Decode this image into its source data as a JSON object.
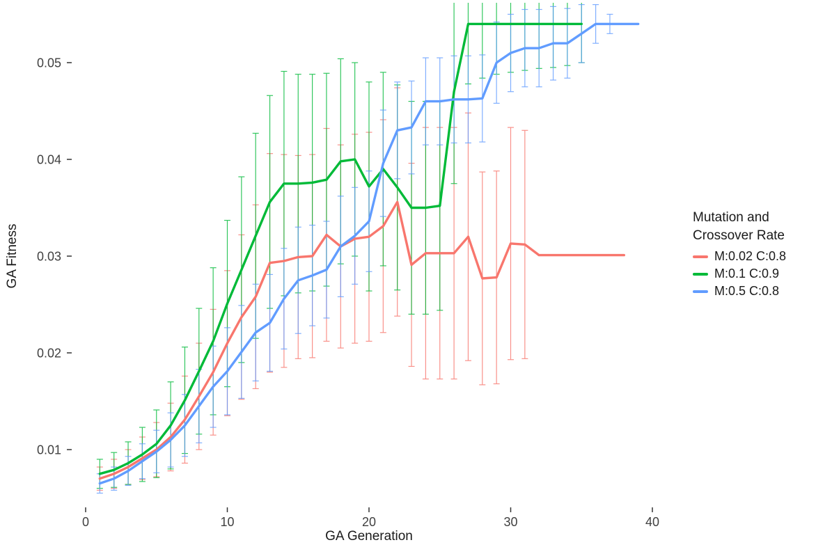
{
  "figure": {
    "background": "#ffffff",
    "legend": {
      "title_line1": "Mutation and",
      "title_line2": "Crossover Rate"
    }
  },
  "chart_data": {
    "type": "line",
    "title": "",
    "xlabel": "GA Generation",
    "ylabel": "GA Fitness",
    "xlim": [
      0,
      42
    ],
    "ylim": [
      0.004,
      0.058
    ],
    "grid": false,
    "legend_position": "right",
    "legend_title": "Mutation and Crossover Rate",
    "x_ticks": [
      0,
      10,
      20,
      30,
      40
    ],
    "x_tick_labels": [
      "0",
      "10",
      "20",
      "30",
      "40"
    ],
    "y_ticks": [
      0.01,
      0.02,
      0.03,
      0.04,
      0.05
    ],
    "y_tick_labels": [
      "0.01",
      "0.02",
      "0.03",
      "0.04",
      "0.05"
    ],
    "error_bars": true,
    "series": [
      {
        "name": "M:0.02 C:0.8",
        "color": "#F8766D",
        "x": [
          1,
          2,
          3,
          4,
          5,
          6,
          7,
          8,
          9,
          10,
          11,
          12,
          13,
          14,
          15,
          16,
          17,
          18,
          19,
          20,
          21,
          22,
          23,
          24,
          25,
          26,
          27,
          28,
          29,
          30,
          31,
          32,
          33,
          34,
          35,
          36,
          37,
          38
        ],
        "y": [
          0.007,
          0.0075,
          0.0082,
          0.0091,
          0.01,
          0.0113,
          0.0131,
          0.0155,
          0.018,
          0.021,
          0.0237,
          0.0258,
          0.0293,
          0.0295,
          0.0299,
          0.03,
          0.0322,
          0.031,
          0.0318,
          0.032,
          0.0331,
          0.0356,
          0.0291,
          0.0303,
          0.0303,
          0.0303,
          0.032,
          0.0277,
          0.0278,
          0.0313,
          0.0312,
          0.0301,
          0.0301,
          0.0301,
          0.0301,
          0.0301,
          0.0301,
          0.0301
        ],
        "err": [
          0.0012,
          0.0015,
          0.0018,
          0.0022,
          0.0028,
          0.0035,
          0.0045,
          0.0055,
          0.0065,
          0.0075,
          0.0085,
          0.0095,
          0.0113,
          0.011,
          0.0105,
          0.0105,
          0.011,
          0.0105,
          0.0108,
          0.0108,
          0.011,
          0.0118,
          0.0105,
          0.013,
          0.013,
          0.013,
          0.0128,
          0.011,
          0.011,
          0.012,
          0.0118,
          0,
          0,
          0,
          0,
          0,
          0,
          0
        ]
      },
      {
        "name": "M:0.1 C:0.9",
        "color": "#00BA38",
        "x": [
          1,
          2,
          3,
          4,
          5,
          6,
          7,
          8,
          9,
          10,
          11,
          12,
          13,
          14,
          15,
          16,
          17,
          18,
          19,
          20,
          21,
          22,
          23,
          24,
          25,
          26,
          27,
          28,
          29,
          30,
          31,
          32,
          33,
          34,
          35
        ],
        "y": [
          0.0075,
          0.0079,
          0.0086,
          0.0095,
          0.0106,
          0.0125,
          0.0151,
          0.0181,
          0.0212,
          0.0251,
          0.0286,
          0.0321,
          0.0356,
          0.0375,
          0.0375,
          0.0376,
          0.0379,
          0.0398,
          0.04,
          0.0372,
          0.039,
          0.0371,
          0.035,
          0.035,
          0.0352,
          0.047,
          0.054,
          0.054,
          0.054,
          0.054,
          0.054,
          0.054,
          0.054,
          0.054,
          0.054
        ],
        "err": [
          0.0015,
          0.0018,
          0.0022,
          0.0028,
          0.0035,
          0.0045,
          0.0055,
          0.0065,
          0.0076,
          0.0086,
          0.0096,
          0.0106,
          0.011,
          0.0116,
          0.0113,
          0.0112,
          0.011,
          0.0106,
          0.01,
          0.0108,
          0.01,
          0.0106,
          0.011,
          0.011,
          0.0108,
          0.0095,
          0.0062,
          0.0056,
          0.0052,
          0.005,
          0.0048,
          0.0046,
          0.0045,
          0.0043,
          0.004
        ]
      },
      {
        "name": "M:0.5 C:0.8",
        "color": "#619CFF",
        "x": [
          1,
          2,
          3,
          4,
          5,
          6,
          7,
          8,
          9,
          10,
          11,
          12,
          13,
          14,
          15,
          16,
          17,
          18,
          19,
          20,
          21,
          22,
          23,
          24,
          25,
          26,
          27,
          28,
          29,
          30,
          31,
          32,
          33,
          34,
          35,
          36,
          37,
          38,
          39
        ],
        "y": [
          0.0065,
          0.007,
          0.0078,
          0.0088,
          0.0098,
          0.011,
          0.0125,
          0.0145,
          0.0165,
          0.0181,
          0.0201,
          0.0221,
          0.0231,
          0.0256,
          0.0275,
          0.028,
          0.0286,
          0.031,
          0.0321,
          0.0336,
          0.0396,
          0.043,
          0.0433,
          0.046,
          0.046,
          0.0462,
          0.0462,
          0.0463,
          0.05,
          0.051,
          0.0515,
          0.0515,
          0.052,
          0.052,
          0.053,
          0.054,
          0.054,
          0.054,
          0.054
        ],
        "err": [
          0.001,
          0.0012,
          0.0015,
          0.0018,
          0.0022,
          0.0028,
          0.0032,
          0.0038,
          0.0042,
          0.0045,
          0.0048,
          0.005,
          0.005,
          0.0052,
          0.0055,
          0.0052,
          0.005,
          0.0052,
          0.005,
          0.0052,
          0.0055,
          0.005,
          0.0048,
          0.0045,
          0.0045,
          0.0045,
          0.0045,
          0.0045,
          0.0042,
          0.004,
          0.004,
          0.004,
          0.0038,
          0.0036,
          0.003,
          0.002,
          0.001,
          0,
          0
        ]
      }
    ]
  }
}
